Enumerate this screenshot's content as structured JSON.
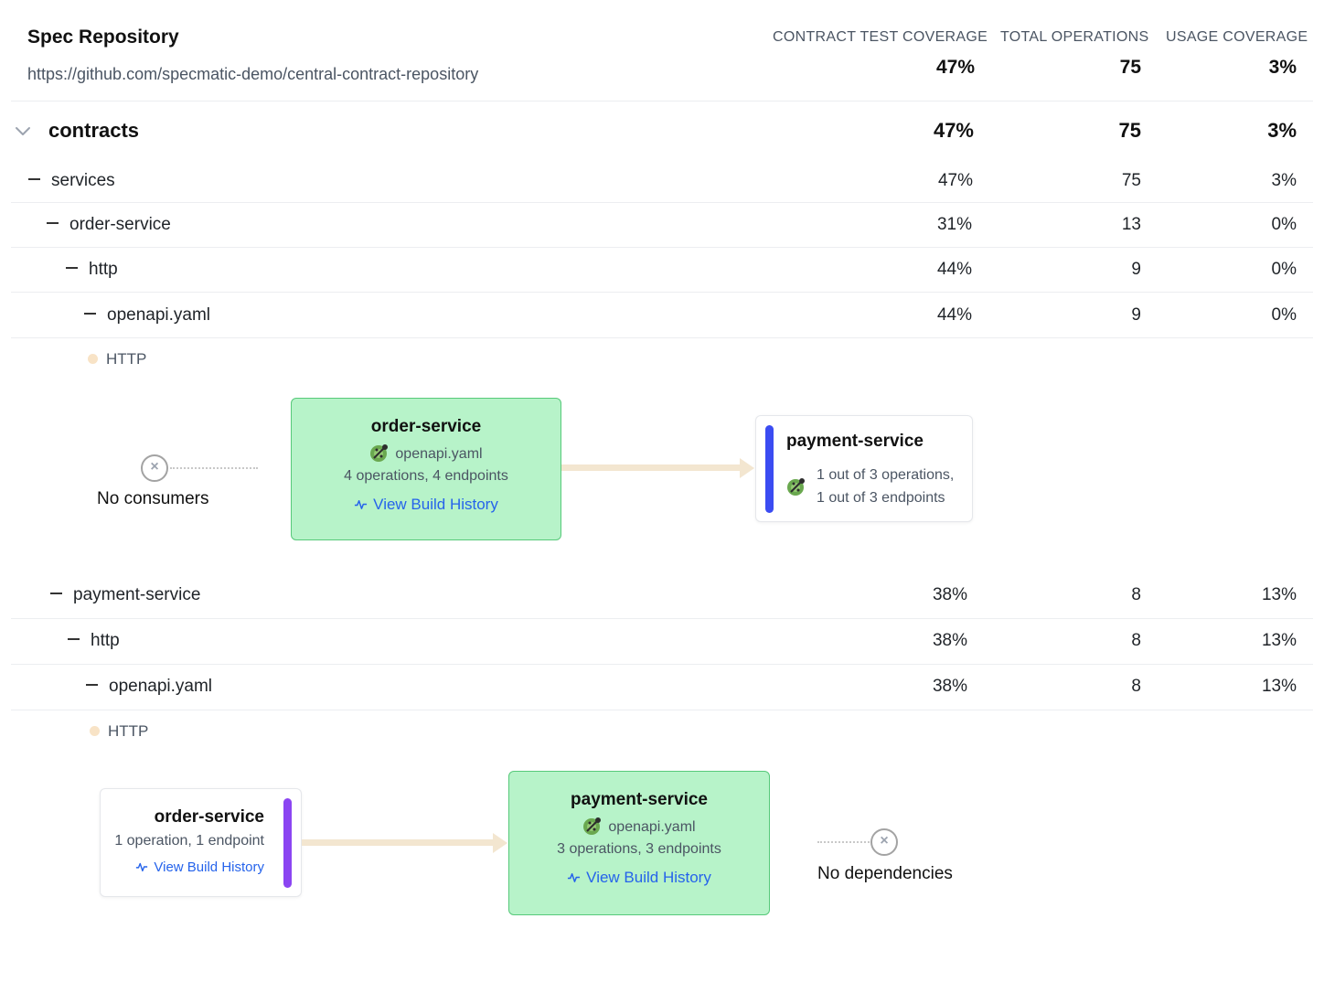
{
  "header": {
    "title": "Spec Repository",
    "url": "https://github.com/specmatic-demo/central-contract-repository",
    "columns": [
      "CONTRACT TEST COVERAGE",
      "TOTAL OPERATIONS",
      "USAGE COVERAGE"
    ],
    "totals": [
      "47%",
      "75",
      "3%"
    ]
  },
  "rows": [
    {
      "label": "contracts",
      "values": [
        "47%",
        "75",
        "3%"
      ]
    },
    {
      "label": "services",
      "values": [
        "47%",
        "75",
        "3%"
      ]
    },
    {
      "label": "order-service",
      "values": [
        "31%",
        "13",
        "0%"
      ]
    },
    {
      "label": "http",
      "values": [
        "44%",
        "9",
        "0%"
      ]
    },
    {
      "label": "openapi.yaml",
      "values": [
        "44%",
        "9",
        "0%"
      ]
    },
    {
      "label": "payment-service",
      "values": [
        "38%",
        "8",
        "13%"
      ]
    },
    {
      "label": "http",
      "values": [
        "38%",
        "8",
        "13%"
      ]
    },
    {
      "label": "openapi.yaml",
      "values": [
        "38%",
        "8",
        "13%"
      ]
    }
  ],
  "graph1": {
    "protocol": "HTTP",
    "consumer_caption": "No consumers",
    "center": {
      "title": "order-service",
      "file": "openapi.yaml",
      "ops": "4 operations, 4 endpoints",
      "link": "View Build History"
    },
    "dependency": {
      "title": "payment-service",
      "ops_line1": "1 out of 3 operations,",
      "ops_line2": "1 out of 3 endpoints",
      "bar_color": "#3b4cf2"
    }
  },
  "graph2": {
    "protocol": "HTTP",
    "consumer": {
      "title": "order-service",
      "ops": "1 operation, 1 endpoint",
      "link": "View Build History",
      "bar_color": "#8b45f2"
    },
    "center": {
      "title": "payment-service",
      "file": "openapi.yaml",
      "ops": "3 operations, 3 endpoints",
      "link": "View Build History"
    },
    "dependency_caption": "No dependencies"
  },
  "icons": {
    "expand": "chevron-down-icon",
    "collapse": "minus-icon",
    "openapi": "openapi-icon",
    "activity": "activity-icon",
    "none": "x-circle-icon"
  }
}
